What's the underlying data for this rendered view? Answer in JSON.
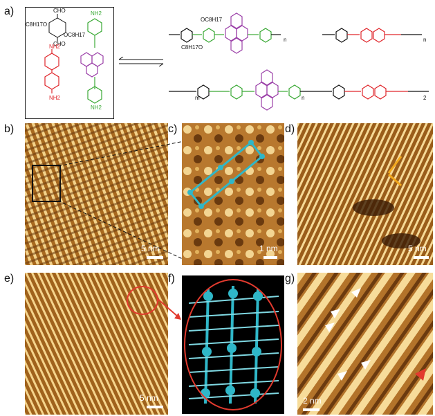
{
  "panels": {
    "a": {
      "label": "a)",
      "labels": {
        "cho_top": "CHO",
        "cho_bottom": "CHO",
        "oc8h17_left": "C8H17O",
        "oc8h17_right": "OC8H17",
        "nh2_top_green": "NH2",
        "nh2_bottom_green": "NH2",
        "nh2_top_red": "NH2",
        "nh2_bottom_red": "NH2",
        "polymer_n": "n",
        "polymer_n2": "n",
        "copolymer_m": "m",
        "copolymer_n": "n",
        "copolymer_2": "2",
        "oc_top": "OC8H17",
        "oc_bottom": "C8H17O"
      },
      "colors": {
        "green_monomer": "#3aa935",
        "red_monomer": "#e0262b",
        "purple_core": "#9b40a8"
      }
    },
    "b": {
      "label": "b)",
      "scale": "5 nm"
    },
    "c": {
      "label": "c)",
      "scale": "1 nm"
    },
    "d": {
      "label": "d)",
      "scale": "5 nm"
    },
    "e": {
      "label": "e)",
      "scale": "5 nm"
    },
    "f": {
      "label": "f)"
    },
    "g": {
      "label": "g)",
      "scale": "2 nm"
    }
  },
  "colors": {
    "stm_dark": "#5a2e08",
    "stm_mid": "#a8691f",
    "stm_bright": "#fff2c8",
    "model_cyan": "#2fb7c8",
    "highlight_red": "#e23a2e",
    "arrow_orange": "#f2a81c"
  }
}
